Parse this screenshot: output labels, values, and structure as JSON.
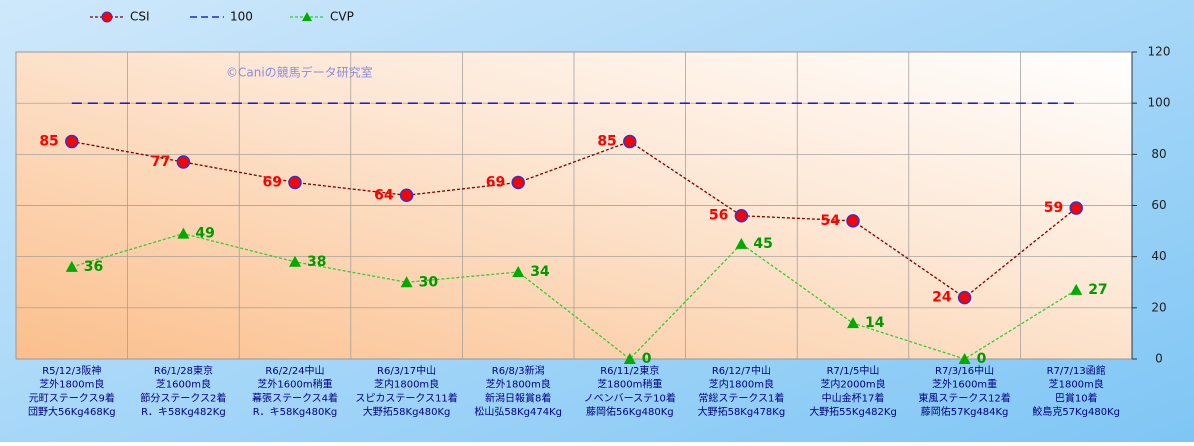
{
  "chart_data": {
    "type": "line",
    "watermark": "©Caniの競馬データ研究室",
    "categories": [
      [
        "R5/12/3阪神",
        "芝外1800m良",
        "元町ステークス9着",
        "団野大56Kg468Kg"
      ],
      [
        "R6/1/28東京",
        "芝1600m良",
        "節分ステークス2着",
        "R．キ58Kg482Kg"
      ],
      [
        "R6/2/24中山",
        "芝外1600m稍重",
        "幕張ステークス4着",
        "R．キ58Kg480Kg"
      ],
      [
        "R6/3/17中山",
        "芝内1800m良",
        "スピカステークス11着",
        "大野拓58Kg480Kg"
      ],
      [
        "R6/8/3新潟",
        "芝外1800m良",
        "新潟日報賞8着",
        "松山弘58Kg474Kg"
      ],
      [
        "R6/11/2東京",
        "芝1800m稍重",
        "ノベンバーステ10着",
        "藤岡佑56Kg480Kg"
      ],
      [
        "R6/12/7中山",
        "芝内1800m良",
        "常総ステークス1着",
        "大野拓58Kg478Kg"
      ],
      [
        "R7/1/5中山",
        "芝内2000m良",
        "中山金杯17着",
        "大野拓55Kg482Kg"
      ],
      [
        "R7/3/16中山",
        "芝外1600m重",
        "東風ステークス12着",
        "藤岡佑57Kg484Kg"
      ],
      [
        "R7/7/13函館",
        "芝1800m良",
        "巴賞10着",
        "鮫島克57Kg480Kg"
      ]
    ],
    "series": [
      {
        "name": "CSI",
        "color": "#800000",
        "marker": "circle",
        "marker_color": "#ff0000",
        "label_color": "#ff0000",
        "data_labels": true,
        "values": [
          85,
          77,
          69,
          64,
          69,
          85,
          56,
          54,
          24,
          59
        ]
      },
      {
        "name": "100",
        "color": "#0000cc",
        "marker": "none",
        "data_labels": false,
        "values": [
          100,
          100,
          100,
          100,
          100,
          100,
          100,
          100,
          100,
          100
        ]
      },
      {
        "name": "CVP",
        "color": "#33cc33",
        "marker": "triangle",
        "marker_color": "#00aa00",
        "label_color": "#009900",
        "data_labels": true,
        "values": [
          36,
          49,
          38,
          30,
          34,
          0,
          45,
          14,
          0,
          27
        ]
      }
    ],
    "ylim": [
      0,
      120
    ],
    "yticks": [
      0,
      20,
      40,
      60,
      80,
      100,
      120
    ],
    "grid": true,
    "y_axis_side": "right"
  }
}
